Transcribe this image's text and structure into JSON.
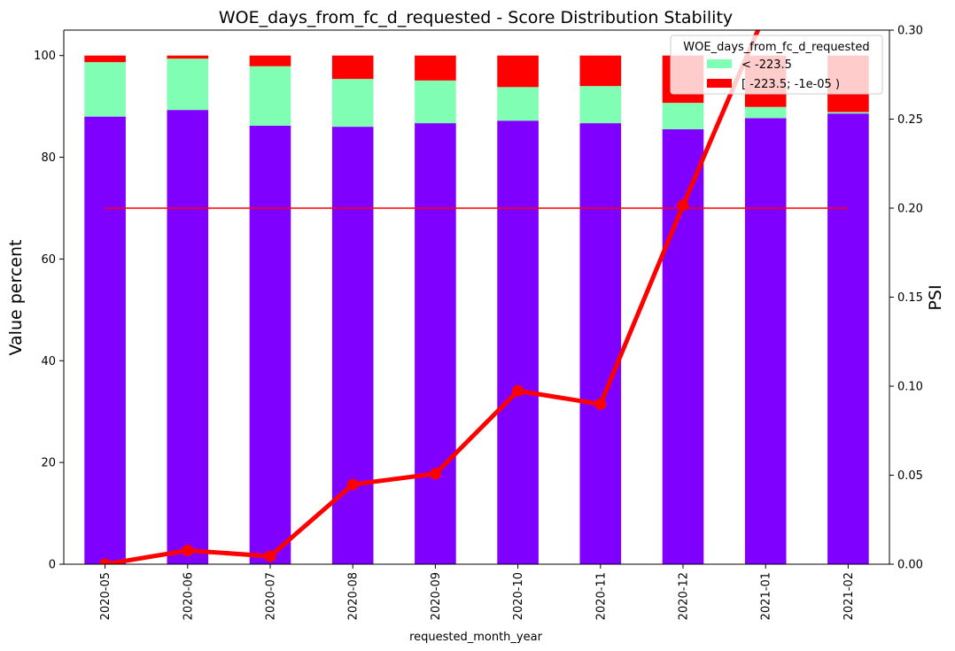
{
  "chart_data": {
    "type": "bar",
    "stacked": true,
    "title": "WOE_days_from_fc_d_requested  - Score Distribution Stability",
    "xlabel": "requested_month_year",
    "ylabel": "Value percent",
    "y2label": "PSI",
    "categories": [
      "2020-05",
      "2020-06",
      "2020-07",
      "2020-08",
      "2020-09",
      "2020-10",
      "2020-11",
      "2020-12",
      "2021-01",
      "2021-02"
    ],
    "ylim": [
      0,
      105
    ],
    "y2lim": [
      0,
      0.3
    ],
    "yticks": [
      "0",
      "20",
      "40",
      "60",
      "80",
      "100"
    ],
    "y2ticks": [
      "0.00",
      "0.05",
      "0.10",
      "0.15",
      "0.20",
      "0.25",
      "0.30"
    ],
    "series": [
      {
        "color": "#8000ff",
        "values": [
          88.0,
          89.3,
          86.2,
          86.0,
          86.7,
          87.2,
          86.7,
          85.5,
          87.7,
          88.6
        ]
      },
      {
        "name": "< -223.5",
        "color": "#80ffb4",
        "values": [
          10.7,
          10.1,
          11.7,
          9.4,
          8.4,
          6.6,
          7.3,
          5.2,
          2.2,
          0.3
        ]
      },
      {
        "name": "[ -223.5; -1e-05 )",
        "color": "#ff0000",
        "values": [
          1.3,
          0.6,
          2.1,
          4.6,
          4.9,
          6.2,
          6.0,
          9.3,
          10.1,
          11.1
        ]
      }
    ],
    "psi": {
      "color": "#ff0000",
      "values": [
        0.0,
        0.0077,
        0.0045,
        0.0448,
        0.0508,
        0.0974,
        0.0899,
        0.2016,
        0.31,
        0.33
      ]
    },
    "threshold": {
      "color": "#ff0000",
      "value": 0.2
    },
    "legend": {
      "title": "WOE_days_from_fc_d_requested",
      "placement": "upper right"
    },
    "grid": false
  }
}
